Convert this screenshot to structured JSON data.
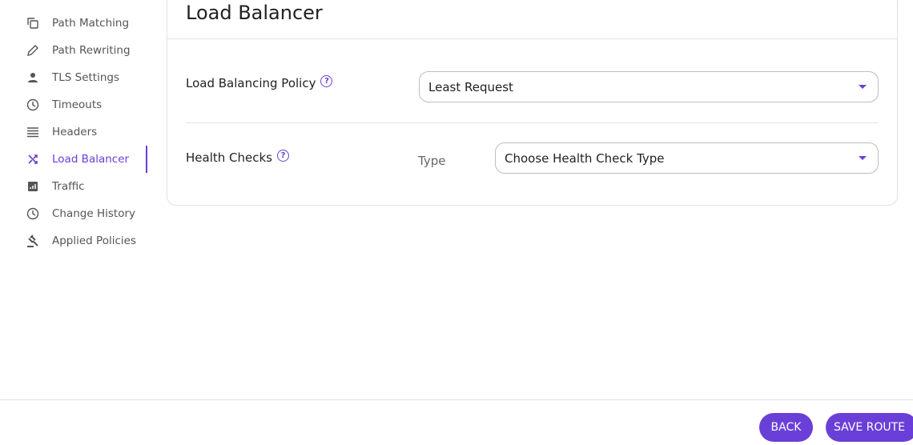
{
  "sidebar": {
    "items": [
      {
        "label": "Path Matching",
        "icon": "copy-icon"
      },
      {
        "label": "Path Rewriting",
        "icon": "pencil-icon"
      },
      {
        "label": "TLS Settings",
        "icon": "person-icon"
      },
      {
        "label": "Timeouts",
        "icon": "clock-icon"
      },
      {
        "label": "Headers",
        "icon": "lines-icon"
      },
      {
        "label": "Load Balancer",
        "icon": "shuffle-icon",
        "active": true
      },
      {
        "label": "Traffic",
        "icon": "chart-icon"
      },
      {
        "label": "Change History",
        "icon": "clock-icon"
      },
      {
        "label": "Applied Policies",
        "icon": "gavel-icon"
      }
    ]
  },
  "main": {
    "title": "Load Balancer",
    "policy": {
      "label": "Load Balancing Policy",
      "value": "Least Request"
    },
    "health": {
      "label": "Health Checks",
      "type_label": "Type",
      "placeholder": "Choose Health Check Type"
    }
  },
  "footer": {
    "back_label": "BACK",
    "save_label": "SAVE ROUTE"
  },
  "colors": {
    "accent": "#6a3fd8"
  }
}
